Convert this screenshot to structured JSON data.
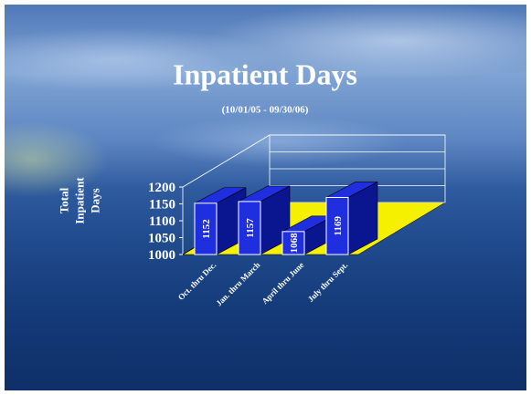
{
  "chart_data": {
    "type": "bar3d",
    "title": "Inpatient Days",
    "subtitle": "(10/01/05 - 09/30/06)",
    "y_label": "Total Inpatient Days",
    "categories": [
      "Oct. thru Dec.",
      "Jan. thru March",
      "April thru June",
      "July thru Sept."
    ],
    "values": [
      1152,
      1157,
      1068,
      1169
    ],
    "color": "#1f2fe0",
    "floor_color": "#f5f000",
    "ylim": [
      1000,
      1200
    ],
    "yticks": [
      1000,
      1050,
      1100,
      1150,
      1200
    ],
    "grid": true
  }
}
